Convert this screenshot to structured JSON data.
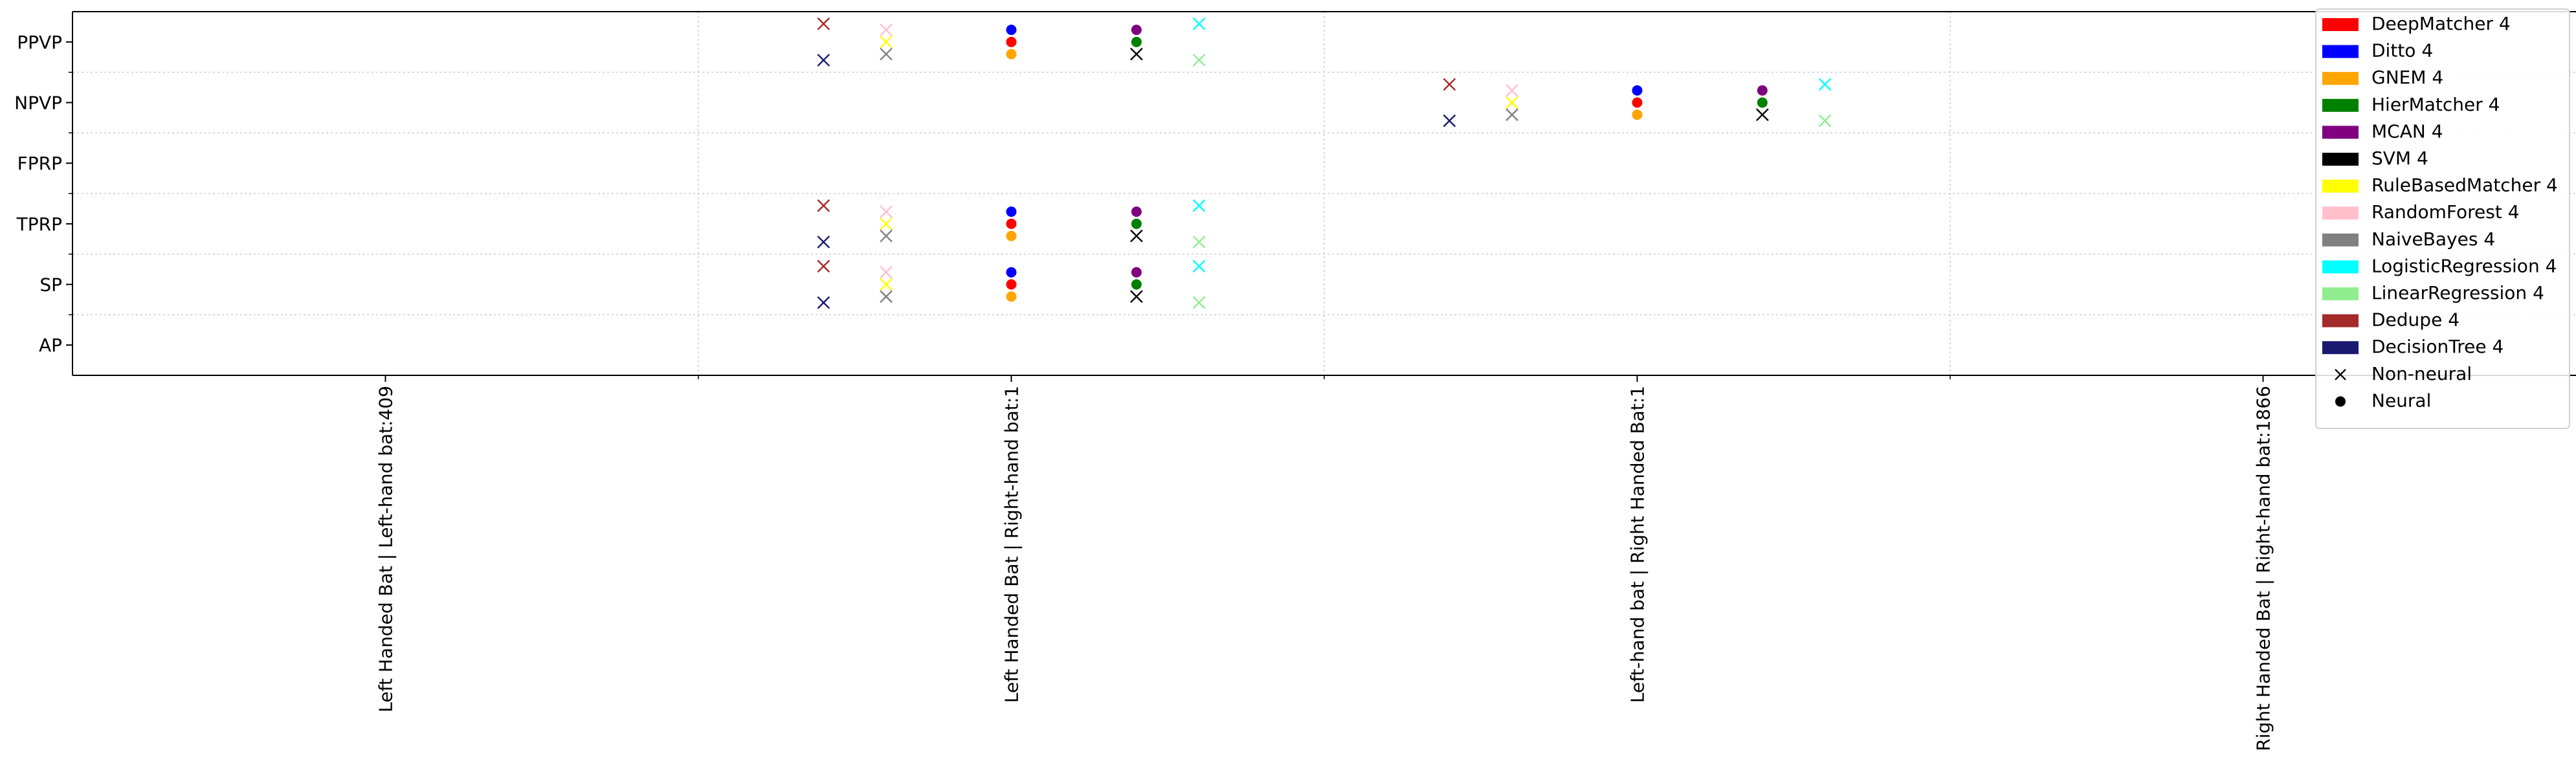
{
  "chart_data": {
    "type": "scatter",
    "title": "",
    "xlabel": "",
    "ylabel": "",
    "grid": true,
    "legend_position": "top-right",
    "x_categories": [
      "Left Handed Bat | Left-hand bat:409",
      "Left Handed Bat | Right-hand bat:1",
      "Left-hand bat | Right Handed Bat:1",
      "Right Handed Bat | Right-hand bat:1866"
    ],
    "y_categories": [
      "AP",
      "SP",
      "TPRP",
      "FPRP",
      "NPVP",
      "PPVP"
    ],
    "marker_legend": [
      {
        "label": "Non-neural",
        "marker": "x"
      },
      {
        "label": "Neural",
        "marker": "o"
      }
    ],
    "series": [
      {
        "name": "DeepMatcher 4",
        "color": "#ff0000",
        "marker": "o",
        "x_offset": 0.0,
        "y_offset": 0.0,
        "points": [
          {
            "x": "Left Handed Bat | Right-hand bat:1",
            "y": "PPVP"
          },
          {
            "x": "Left Handed Bat | Right-hand bat:1",
            "y": "TPRP"
          },
          {
            "x": "Left Handed Bat | Right-hand bat:1",
            "y": "SP"
          },
          {
            "x": "Left-hand bat | Right Handed Bat:1",
            "y": "NPVP"
          }
        ]
      },
      {
        "name": "Ditto 4",
        "color": "#0000ff",
        "marker": "o",
        "x_offset": 0.0,
        "y_offset": 0.2,
        "points": [
          {
            "x": "Left Handed Bat | Right-hand bat:1",
            "y": "PPVP"
          },
          {
            "x": "Left Handed Bat | Right-hand bat:1",
            "y": "TPRP"
          },
          {
            "x": "Left Handed Bat | Right-hand bat:1",
            "y": "SP"
          },
          {
            "x": "Left-hand bat | Right Handed Bat:1",
            "y": "NPVP"
          }
        ]
      },
      {
        "name": "GNEM 4",
        "color": "#ffa500",
        "marker": "o",
        "x_offset": 0.0,
        "y_offset": -0.2,
        "points": [
          {
            "x": "Left Handed Bat | Right-hand bat:1",
            "y": "PPVP"
          },
          {
            "x": "Left Handed Bat | Right-hand bat:1",
            "y": "TPRP"
          },
          {
            "x": "Left Handed Bat | Right-hand bat:1",
            "y": "SP"
          },
          {
            "x": "Left-hand bat | Right Handed Bat:1",
            "y": "NPVP"
          }
        ]
      },
      {
        "name": "HierMatcher 4",
        "color": "#008000",
        "marker": "o",
        "x_offset": 0.2,
        "y_offset": 0.0,
        "points": [
          {
            "x": "Left Handed Bat | Right-hand bat:1",
            "y": "PPVP"
          },
          {
            "x": "Left Handed Bat | Right-hand bat:1",
            "y": "TPRP"
          },
          {
            "x": "Left Handed Bat | Right-hand bat:1",
            "y": "SP"
          },
          {
            "x": "Left-hand bat | Right Handed Bat:1",
            "y": "NPVP"
          }
        ]
      },
      {
        "name": "MCAN 4",
        "color": "#800080",
        "marker": "o",
        "x_offset": 0.2,
        "y_offset": 0.2,
        "points": [
          {
            "x": "Left Handed Bat | Right-hand bat:1",
            "y": "PPVP"
          },
          {
            "x": "Left Handed Bat | Right-hand bat:1",
            "y": "TPRP"
          },
          {
            "x": "Left Handed Bat | Right-hand bat:1",
            "y": "SP"
          },
          {
            "x": "Left-hand bat | Right Handed Bat:1",
            "y": "NPVP"
          }
        ]
      },
      {
        "name": "SVM 4",
        "color": "#000000",
        "marker": "x",
        "x_offset": 0.2,
        "y_offset": -0.2,
        "points": [
          {
            "x": "Left Handed Bat | Right-hand bat:1",
            "y": "PPVP"
          },
          {
            "x": "Left Handed Bat | Right-hand bat:1",
            "y": "TPRP"
          },
          {
            "x": "Left Handed Bat | Right-hand bat:1",
            "y": "SP"
          },
          {
            "x": "Left-hand bat | Right Handed Bat:1",
            "y": "NPVP"
          }
        ]
      },
      {
        "name": "RuleBasedMatcher 4",
        "color": "#ffff00",
        "marker": "x",
        "x_offset": -0.2,
        "y_offset": 0.0,
        "points": [
          {
            "x": "Left Handed Bat | Right-hand bat:1",
            "y": "PPVP"
          },
          {
            "x": "Left Handed Bat | Right-hand bat:1",
            "y": "TPRP"
          },
          {
            "x": "Left Handed Bat | Right-hand bat:1",
            "y": "SP"
          },
          {
            "x": "Left-hand bat | Right Handed Bat:1",
            "y": "NPVP"
          }
        ]
      },
      {
        "name": "RandomForest 4",
        "color": "#ffc0cb",
        "marker": "x",
        "x_offset": -0.2,
        "y_offset": 0.2,
        "points": [
          {
            "x": "Left Handed Bat | Right-hand bat:1",
            "y": "PPVP"
          },
          {
            "x": "Left Handed Bat | Right-hand bat:1",
            "y": "TPRP"
          },
          {
            "x": "Left Handed Bat | Right-hand bat:1",
            "y": "SP"
          },
          {
            "x": "Left-hand bat | Right Handed Bat:1",
            "y": "NPVP"
          }
        ]
      },
      {
        "name": "NaiveBayes 4",
        "color": "#808080",
        "marker": "x",
        "x_offset": -0.2,
        "y_offset": -0.2,
        "points": [
          {
            "x": "Left Handed Bat | Right-hand bat:1",
            "y": "PPVP"
          },
          {
            "x": "Left Handed Bat | Right-hand bat:1",
            "y": "TPRP"
          },
          {
            "x": "Left Handed Bat | Right-hand bat:1",
            "y": "SP"
          },
          {
            "x": "Left-hand bat | Right Handed Bat:1",
            "y": "NPVP"
          }
        ]
      },
      {
        "name": "LogisticRegression 4",
        "color": "#00ffff",
        "marker": "x",
        "x_offset": 0.3,
        "y_offset": 0.3,
        "points": [
          {
            "x": "Left Handed Bat | Right-hand bat:1",
            "y": "PPVP"
          },
          {
            "x": "Left Handed Bat | Right-hand bat:1",
            "y": "TPRP"
          },
          {
            "x": "Left Handed Bat | Right-hand bat:1",
            "y": "SP"
          },
          {
            "x": "Left-hand bat | Right Handed Bat:1",
            "y": "NPVP"
          }
        ]
      },
      {
        "name": "LinearRegression 4",
        "color": "#90ee90",
        "marker": "x",
        "x_offset": 0.3,
        "y_offset": -0.3,
        "points": [
          {
            "x": "Left Handed Bat | Right-hand bat:1",
            "y": "PPVP"
          },
          {
            "x": "Left Handed Bat | Right-hand bat:1",
            "y": "TPRP"
          },
          {
            "x": "Left Handed Bat | Right-hand bat:1",
            "y": "SP"
          },
          {
            "x": "Left-hand bat | Right Handed Bat:1",
            "y": "NPVP"
          }
        ]
      },
      {
        "name": "Dedupe 4",
        "color": "#a52a2a",
        "marker": "x",
        "x_offset": -0.3,
        "y_offset": 0.3,
        "points": [
          {
            "x": "Left Handed Bat | Right-hand bat:1",
            "y": "PPVP"
          },
          {
            "x": "Left Handed Bat | Right-hand bat:1",
            "y": "TPRP"
          },
          {
            "x": "Left Handed Bat | Right-hand bat:1",
            "y": "SP"
          },
          {
            "x": "Left-hand bat | Right Handed Bat:1",
            "y": "NPVP"
          }
        ]
      },
      {
        "name": "DecisionTree 4",
        "color": "#191970",
        "marker": "x",
        "x_offset": -0.3,
        "y_offset": -0.3,
        "points": [
          {
            "x": "Left Handed Bat | Right-hand bat:1",
            "y": "PPVP"
          },
          {
            "x": "Left Handed Bat | Right-hand bat:1",
            "y": "TPRP"
          },
          {
            "x": "Left Handed Bat | Right-hand bat:1",
            "y": "SP"
          },
          {
            "x": "Left-hand bat | Right Handed Bat:1",
            "y": "NPVP"
          }
        ]
      }
    ]
  }
}
